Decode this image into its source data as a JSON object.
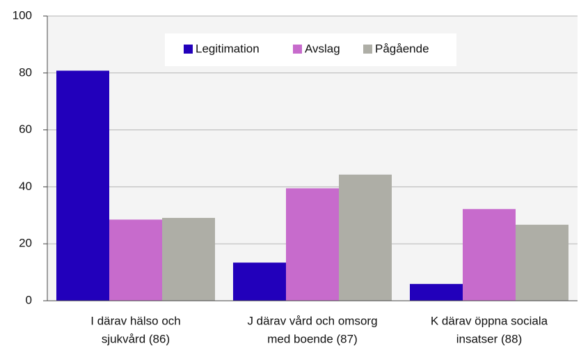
{
  "chart_data": {
    "type": "bar",
    "categories": [
      [
        "I    därav hälso och",
        "sjukvård (86)"
      ],
      [
        "J    därav vård och omsorg",
        "med boende (87)"
      ],
      [
        "K    därav öppna sociala",
        "insatser (88)"
      ]
    ],
    "series": [
      {
        "name": "Legitimation",
        "color": "#2200bb",
        "values": [
          80.8,
          13.4,
          5.9
        ]
      },
      {
        "name": "Avslag",
        "color": "#c76bcc",
        "values": [
          28.5,
          39.5,
          32.2
        ]
      },
      {
        "name": "Pågående",
        "color": "#aeaea6",
        "values": [
          29.1,
          44.3,
          26.7
        ]
      }
    ],
    "ylim": [
      0,
      100
    ],
    "yticks": [
      0,
      20,
      40,
      60,
      80,
      100
    ],
    "grid": true,
    "legend": "top"
  }
}
